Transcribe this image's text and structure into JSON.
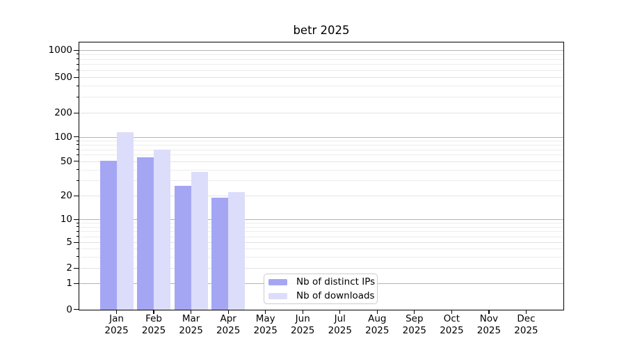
{
  "title": "betr 2025",
  "legend": {
    "items": [
      {
        "label": "Nb of distinct IPs",
        "color": "#a4a6f4"
      },
      {
        "label": "Nb of downloads",
        "color": "#dcddfa"
      }
    ]
  },
  "chart_data": {
    "type": "bar",
    "title": "betr 2025",
    "categories": [
      "Jan",
      "Feb",
      "Mar",
      "Apr",
      "May",
      "Jun",
      "Jul",
      "Aug",
      "Sep",
      "Oct",
      "Nov",
      "Dec"
    ],
    "x_sublabel": "2025",
    "series": [
      {
        "name": "Nb of distinct IPs",
        "color": "#a4a6f4",
        "values": [
          51,
          56,
          26,
          19,
          0,
          0,
          0,
          0,
          0,
          0,
          0,
          0
        ]
      },
      {
        "name": "Nb of downloads",
        "color": "#dcddfa",
        "values": [
          115,
          70,
          38,
          22,
          0,
          0,
          0,
          0,
          0,
          0,
          0,
          0
        ]
      }
    ],
    "y_scale": "symlog",
    "yticks": [
      0,
      1,
      2,
      5,
      10,
      20,
      50,
      100,
      200,
      500,
      1000
    ],
    "minor_gridlines": [
      3,
      4,
      6,
      7,
      8,
      9,
      30,
      40,
      60,
      70,
      80,
      90,
      300,
      400,
      600,
      700,
      800,
      900
    ],
    "decade_gridlines": [
      1,
      10,
      100,
      1000
    ],
    "ylim": [
      0,
      1200
    ],
    "grid": true,
    "legend_position": "lower center"
  },
  "colors": {
    "bar_distinct_ips": "#a4a6f4",
    "bar_downloads": "#dcddfa",
    "major_grid": "#b3b3b3",
    "minor_grid": "#ececec",
    "spine": "#000000",
    "background": "#ffffff"
  }
}
